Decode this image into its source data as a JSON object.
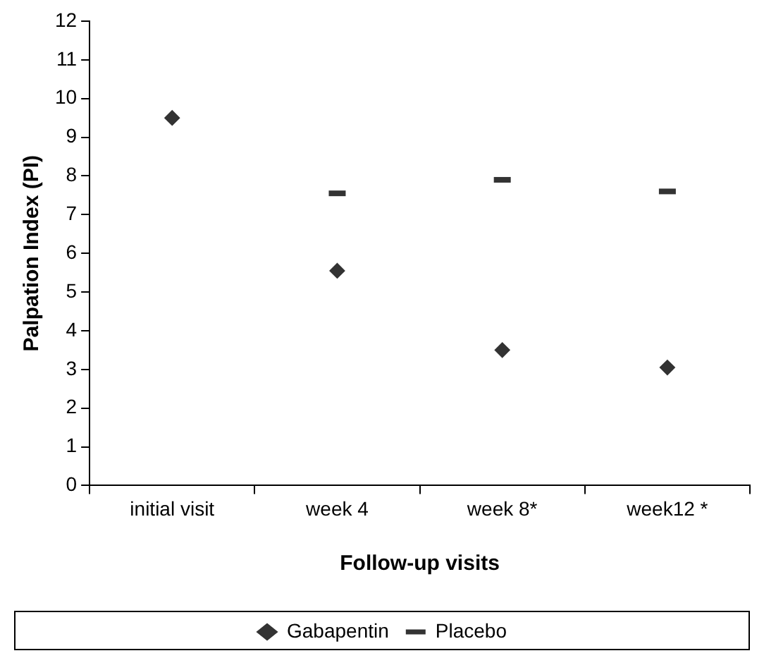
{
  "chart_data": {
    "type": "scatter",
    "xlabel": "Follow-up visits",
    "ylabel": "Palpation Index (PI)",
    "categories": [
      "initial visit",
      "week 4",
      "week 8*",
      "week12 *"
    ],
    "series": [
      {
        "name": "Gabapentin",
        "color": "#333333",
        "marker": "diamond",
        "values": [
          9.5,
          5.55,
          3.5,
          3.05
        ]
      },
      {
        "name": "Placebo",
        "color": "#333333",
        "values": [
          null,
          7.55,
          7.9,
          7.6
        ]
      }
    ],
    "ylim": [
      0,
      12
    ],
    "yticks": [
      0,
      1,
      2,
      3,
      4,
      5,
      6,
      7,
      8,
      9,
      10,
      11,
      12
    ],
    "grid": false,
    "legend": "bottom"
  }
}
